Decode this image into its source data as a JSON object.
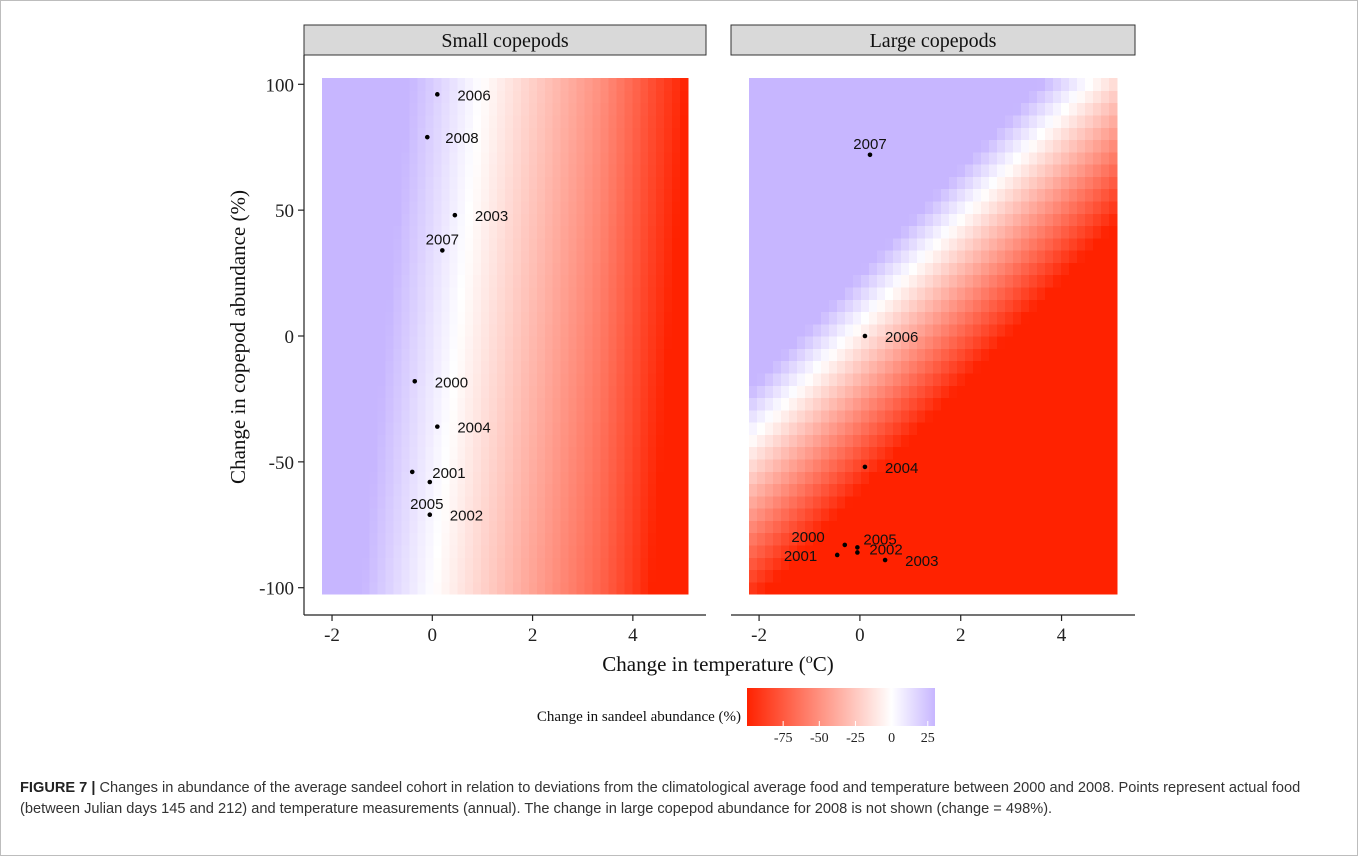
{
  "chart_data": {
    "type": "heatmap",
    "xlabel": "Change in temperature (",
    "xlabel_sup": "o",
    "xlabel_end": "C)",
    "ylabel": "Change in copepod abundance (%)",
    "xlim": [
      -2,
      5
    ],
    "ylim": [
      -100,
      100
    ],
    "x_ticks": [
      -2,
      0,
      2,
      4
    ],
    "y_ticks": [
      -100,
      -50,
      0,
      50,
      100
    ],
    "x_tick_labels": [
      "-2",
      "0",
      "2",
      "4"
    ],
    "y_tick_labels": [
      "-100",
      "-50",
      "0",
      "50",
      "100"
    ],
    "color_scale": {
      "low": "#ff2200",
      "mid": "#ffffff",
      "high": "#c7b6ff",
      "min": -100,
      "max": 30
    },
    "legend": {
      "title": "Change in sandeel abundance (%)",
      "ticks": [
        -75,
        -50,
        -25,
        0,
        25
      ],
      "tick_labels": [
        "-75",
        "-50",
        "-25",
        "0",
        "25"
      ],
      "placement": "bottom"
    },
    "panels": [
      {
        "title": "Small copepods",
        "points": [
          {
            "label": "2006",
            "x": 0.1,
            "y": 96
          },
          {
            "label": "2008",
            "x": -0.1,
            "y": 79
          },
          {
            "label": "2003",
            "x": 0.45,
            "y": 48
          },
          {
            "label": "2007",
            "x": 0.2,
            "y": 34
          },
          {
            "label": "2000",
            "x": -0.35,
            "y": -18
          },
          {
            "label": "2004",
            "x": 0.1,
            "y": -36
          },
          {
            "label": "2001",
            "x": -0.4,
            "y": -54
          },
          {
            "label": "2005",
            "x": -0.05,
            "y": -58
          },
          {
            "label": "2002",
            "x": -0.05,
            "y": -71
          }
        ]
      },
      {
        "title": "Large copepods",
        "points": [
          {
            "label": "2007",
            "x": 0.2,
            "y": 72
          },
          {
            "label": "2006",
            "x": 0.1,
            "y": 0
          },
          {
            "label": "2004",
            "x": 0.1,
            "y": -52
          },
          {
            "label": "2000",
            "x": -0.3,
            "y": -83
          },
          {
            "label": "2005",
            "x": -0.05,
            "y": -84
          },
          {
            "label": "2002",
            "x": -0.05,
            "y": -86
          },
          {
            "label": "2001",
            "x": -0.45,
            "y": -87
          },
          {
            "label": "2003",
            "x": 0.5,
            "y": -89
          }
        ]
      }
    ]
  },
  "caption": {
    "label": "FIGURE 7 |",
    "text": " Changes in abundance of the average sandeel cohort in relation to deviations from the climatological average food and temperature between 2000 and 2008. Points represent actual food (between Julian days 145 and 212) and temperature measurements (annual). The change in large copepod abundance for 2008 is not shown (change = 498%)."
  }
}
